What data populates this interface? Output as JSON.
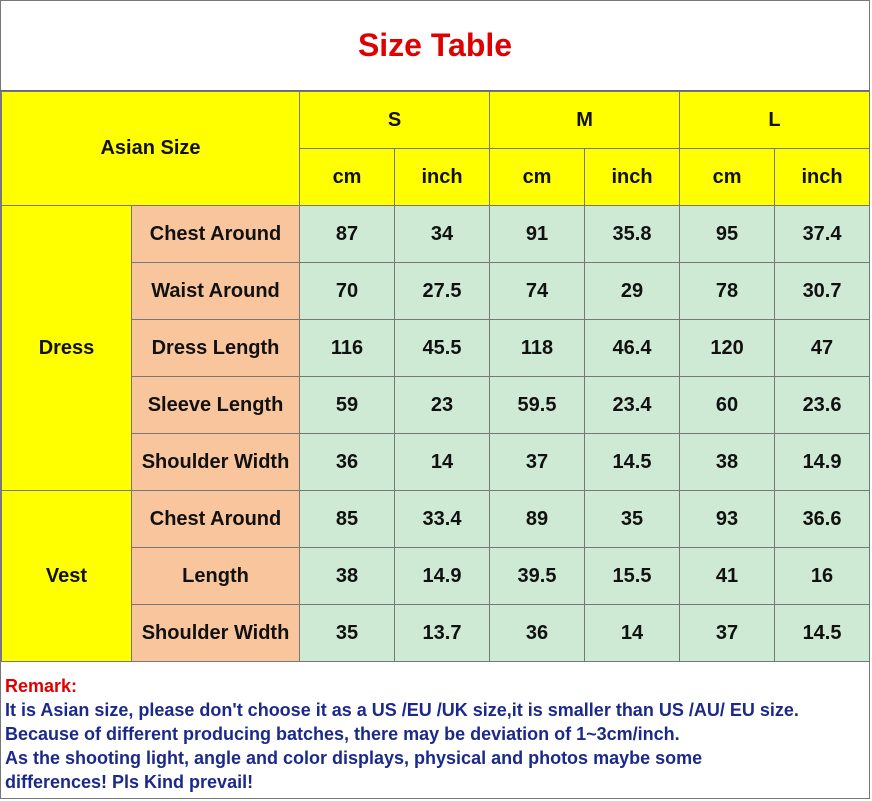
{
  "title": "Size Table",
  "header": {
    "asian_size": "Asian Size",
    "sizes": [
      "S",
      "M",
      "L"
    ],
    "units": [
      "cm",
      "inch",
      "cm",
      "inch",
      "cm",
      "inch"
    ]
  },
  "groups": [
    {
      "name": "Dress",
      "rows": [
        {
          "label": "Chest Around",
          "values": [
            "87",
            "34",
            "91",
            "35.8",
            "95",
            "37.4"
          ]
        },
        {
          "label": "Waist Around",
          "values": [
            "70",
            "27.5",
            "74",
            "29",
            "78",
            "30.7"
          ]
        },
        {
          "label": "Dress Length",
          "values": [
            "116",
            "45.5",
            "118",
            "46.4",
            "120",
            "47"
          ]
        },
        {
          "label": "Sleeve Length",
          "values": [
            "59",
            "23",
            "59.5",
            "23.4",
            "60",
            "23.6"
          ]
        },
        {
          "label": "Shoulder Width",
          "values": [
            "36",
            "14",
            "37",
            "14.5",
            "38",
            "14.9"
          ]
        }
      ]
    },
    {
      "name": "Vest",
      "rows": [
        {
          "label": "Chest Around",
          "values": [
            "85",
            "33.4",
            "89",
            "35",
            "93",
            "36.6"
          ]
        },
        {
          "label": "Length",
          "values": [
            "38",
            "14.9",
            "39.5",
            "15.5",
            "41",
            "16"
          ]
        },
        {
          "label": "Shoulder Width",
          "values": [
            "35",
            "13.7",
            "36",
            "14",
            "37",
            "14.5"
          ]
        }
      ]
    }
  ],
  "remark": {
    "title": "Remark:",
    "lines": [
      "It is Asian size, please don't choose it as a US /EU /UK size,it is smaller than US /AU/ EU size.",
      "Because of different producing batches, there may be deviation of 1~3cm/inch.",
      "As the shooting light, angle and color displays, physical and photos maybe some",
      "differences! Pls Kind prevail!"
    ]
  },
  "colors": {
    "title": "#e00000",
    "header": "#ffff00",
    "measure_label": "#f9c59d",
    "value_cell": "#cfead4",
    "remark_text": "#1b2a8a"
  }
}
